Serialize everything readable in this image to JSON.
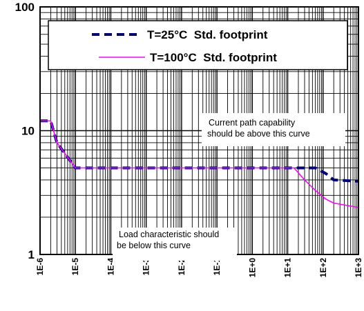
{
  "chart_data": {
    "type": "line",
    "x_scale": "log",
    "y_scale": "log",
    "xlim": [
      1e-06,
      1000
    ],
    "ylim": [
      1,
      100
    ],
    "x_tick_labels": [
      "1E-6",
      "1E-5",
      "1E-4",
      "1E-3",
      "1E-2",
      "1E-1",
      "1E+0",
      "1E+1",
      "1E+2",
      "1E+3"
    ],
    "y_tick_labels": [
      "1",
      "10",
      "100"
    ],
    "grid": true,
    "legend_position": "top",
    "series": [
      {
        "name": "T=25°C  Std. footprint",
        "color": "#000080",
        "style": "dashed",
        "points": [
          [
            1e-06,
            12
          ],
          [
            2e-06,
            12
          ],
          [
            3e-06,
            8
          ],
          [
            1e-05,
            5
          ],
          [
            0.0001,
            5
          ],
          [
            0.001,
            5
          ],
          [
            0.01,
            5
          ],
          [
            0.1,
            5
          ],
          [
            1.0,
            5
          ],
          [
            10.0,
            5
          ],
          [
            30,
            5
          ],
          [
            60,
            5
          ],
          [
            120,
            4.5
          ],
          [
            200,
            4
          ],
          [
            1000,
            3.9
          ]
        ]
      },
      {
        "name": "T=100°C  Std. footprint",
        "color": "#ff00ff",
        "style": "solid",
        "points": [
          [
            1e-06,
            12
          ],
          [
            2e-06,
            12
          ],
          [
            3e-06,
            8
          ],
          [
            1e-05,
            5
          ],
          [
            0.0001,
            5
          ],
          [
            0.001,
            5
          ],
          [
            0.01,
            5
          ],
          [
            0.1,
            5
          ],
          [
            1.0,
            5
          ],
          [
            10.0,
            5
          ],
          [
            15,
            5
          ],
          [
            30,
            4
          ],
          [
            60,
            3.3
          ],
          [
            120,
            2.8
          ],
          [
            200,
            2.6
          ],
          [
            1000,
            2.4
          ]
        ]
      }
    ],
    "annotations": [
      {
        "lines": [
          "Current path capability",
          "should be above this curve"
        ]
      },
      {
        "lines": [
          "Load characteristic should",
          "be below this curve"
        ]
      }
    ]
  }
}
